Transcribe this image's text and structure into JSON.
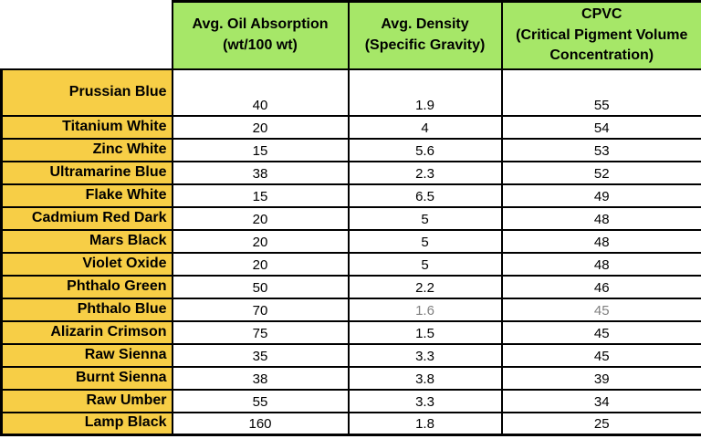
{
  "colors": {
    "header_bg": "#A6E768",
    "name_bg": "#F7CE46",
    "border": "#000000",
    "text": "#000000",
    "muted_text": "#808080",
    "cell_bg": "#FFFFFF"
  },
  "header": {
    "corner": "",
    "cols": [
      "Avg. Oil Absorption\n(wt/100 wt)",
      "Avg. Density\n(Specific Gravity)",
      "CPVC\n(Critical Pigment Volume\nConcentration)"
    ]
  },
  "styles": {
    "muted_row_index": 9,
    "muted_cols": [
      2,
      3
    ]
  },
  "chart_data": {
    "type": "table",
    "columns": [
      "",
      "Avg. Oil Absorption (wt/100 wt)",
      "Avg. Density (Specific Gravity)",
      "CPVC (Critical Pigment Volume Concentration)"
    ],
    "rows": [
      [
        "Prussian Blue",
        40,
        1.9,
        55
      ],
      [
        "Titanium White",
        20,
        4,
        54
      ],
      [
        "Zinc White",
        15,
        5.6,
        53
      ],
      [
        "Ultramarine Blue",
        38,
        2.3,
        52
      ],
      [
        "Flake White",
        15,
        6.5,
        49
      ],
      [
        "Cadmium Red Dark",
        20,
        5,
        48
      ],
      [
        "Mars Black",
        20,
        5,
        48
      ],
      [
        "Violet Oxide",
        20,
        5,
        48
      ],
      [
        "Phthalo Green",
        50,
        2.2,
        46
      ],
      [
        "Phthalo Blue",
        70,
        1.6,
        45
      ],
      [
        "Alizarin Crimson",
        75,
        1.5,
        45
      ],
      [
        "Raw Sienna",
        35,
        3.3,
        45
      ],
      [
        "Burnt Sienna",
        38,
        3.8,
        39
      ],
      [
        "Raw Umber",
        55,
        3.3,
        34
      ],
      [
        "Lamp Black",
        160,
        1.8,
        25
      ]
    ]
  }
}
